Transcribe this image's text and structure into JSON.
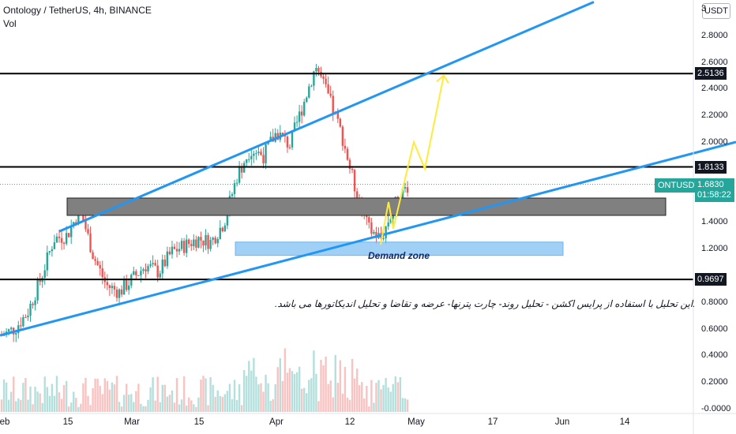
{
  "header": {
    "title": "Ontology / TetherUS, 4h, BINANCE",
    "vol_label": "Vol",
    "unit": "USDT"
  },
  "chart_data": {
    "type": "candlestick",
    "symbol": "ONTUSDT",
    "exchange": "BINANCE",
    "interval": "4h",
    "y_ticks": [
      "3",
      "2.8000",
      "2.6000",
      "2.4000",
      "2.2000",
      "2.0000",
      "1.4000",
      "1.2000",
      "0.8000",
      "0.6000",
      "0.4000",
      "0.2000",
      "-0.0000"
    ],
    "y_tick_values": [
      3.0,
      2.8,
      2.6,
      2.4,
      2.2,
      2.0,
      1.4,
      1.2,
      0.8,
      0.6,
      0.4,
      0.2,
      0.0
    ],
    "x_ticks": [
      "eb",
      "15",
      "Mar",
      "15",
      "Apr",
      "12",
      "May",
      "17",
      "Jun",
      "14"
    ],
    "price_levels": [
      {
        "label": "2.5136",
        "value": 2.5136
      },
      {
        "label": "1.8133",
        "value": 1.8133
      },
      {
        "label": "0.9697",
        "value": 0.9697
      }
    ],
    "last_price": "1.6830",
    "countdown": "01:58:22",
    "resistance_zone": [
      1.45,
      1.58
    ],
    "demand_zone": [
      1.15,
      1.25
    ],
    "annotations": {
      "demand_zone": "Demand zone",
      "note": ".این تحلیل با استفاده از پرایس اکشن - تحلیل روند- چارت پترنها- عرضه و تقاضا و تحلیل اندیکاتورها می باشد."
    },
    "price_path": [
      [
        0.55,
        0.55
      ],
      [
        0.62,
        0.58
      ],
      [
        0.75,
        0.7
      ],
      [
        1.0,
        0.95
      ],
      [
        1.3,
        1.25
      ],
      [
        1.25,
        1.35
      ],
      [
        1.55,
        1.45
      ],
      [
        1.1,
        1.2
      ],
      [
        0.9,
        0.95
      ],
      [
        0.85,
        0.9
      ],
      [
        0.95,
        1.0
      ],
      [
        1.05,
        1.1
      ],
      [
        1.0,
        1.05
      ],
      [
        1.15,
        1.2
      ],
      [
        1.2,
        1.25
      ],
      [
        1.25,
        1.3
      ],
      [
        1.2,
        1.3
      ],
      [
        1.35,
        1.45
      ],
      [
        1.7,
        1.8
      ],
      [
        1.9,
        2.0
      ],
      [
        1.85,
        1.95
      ],
      [
        2.05,
        2.1
      ],
      [
        1.95,
        2.0
      ],
      [
        2.2,
        2.35
      ],
      [
        2.55,
        2.6
      ],
      [
        2.3,
        2.35
      ],
      [
        2.0,
        2.1
      ],
      [
        1.6,
        1.7
      ],
      [
        1.3,
        1.4
      ],
      [
        1.25,
        1.3
      ],
      [
        1.5,
        1.55
      ],
      [
        1.65,
        1.7
      ]
    ],
    "projection": [
      [
        1.23,
        1.23
      ],
      [
        1.55,
        1.55
      ],
      [
        1.35,
        1.35
      ],
      [
        2.0,
        2.0
      ],
      [
        1.8,
        1.8
      ],
      [
        2.5,
        2.5
      ]
    ],
    "colors": {
      "up": "#26a69a",
      "down": "#ef5350",
      "trendline": "#2196f3",
      "projection": "#ffeb3b",
      "resistance_zone": "#808080",
      "demand_zone": "#90c8f5"
    }
  }
}
